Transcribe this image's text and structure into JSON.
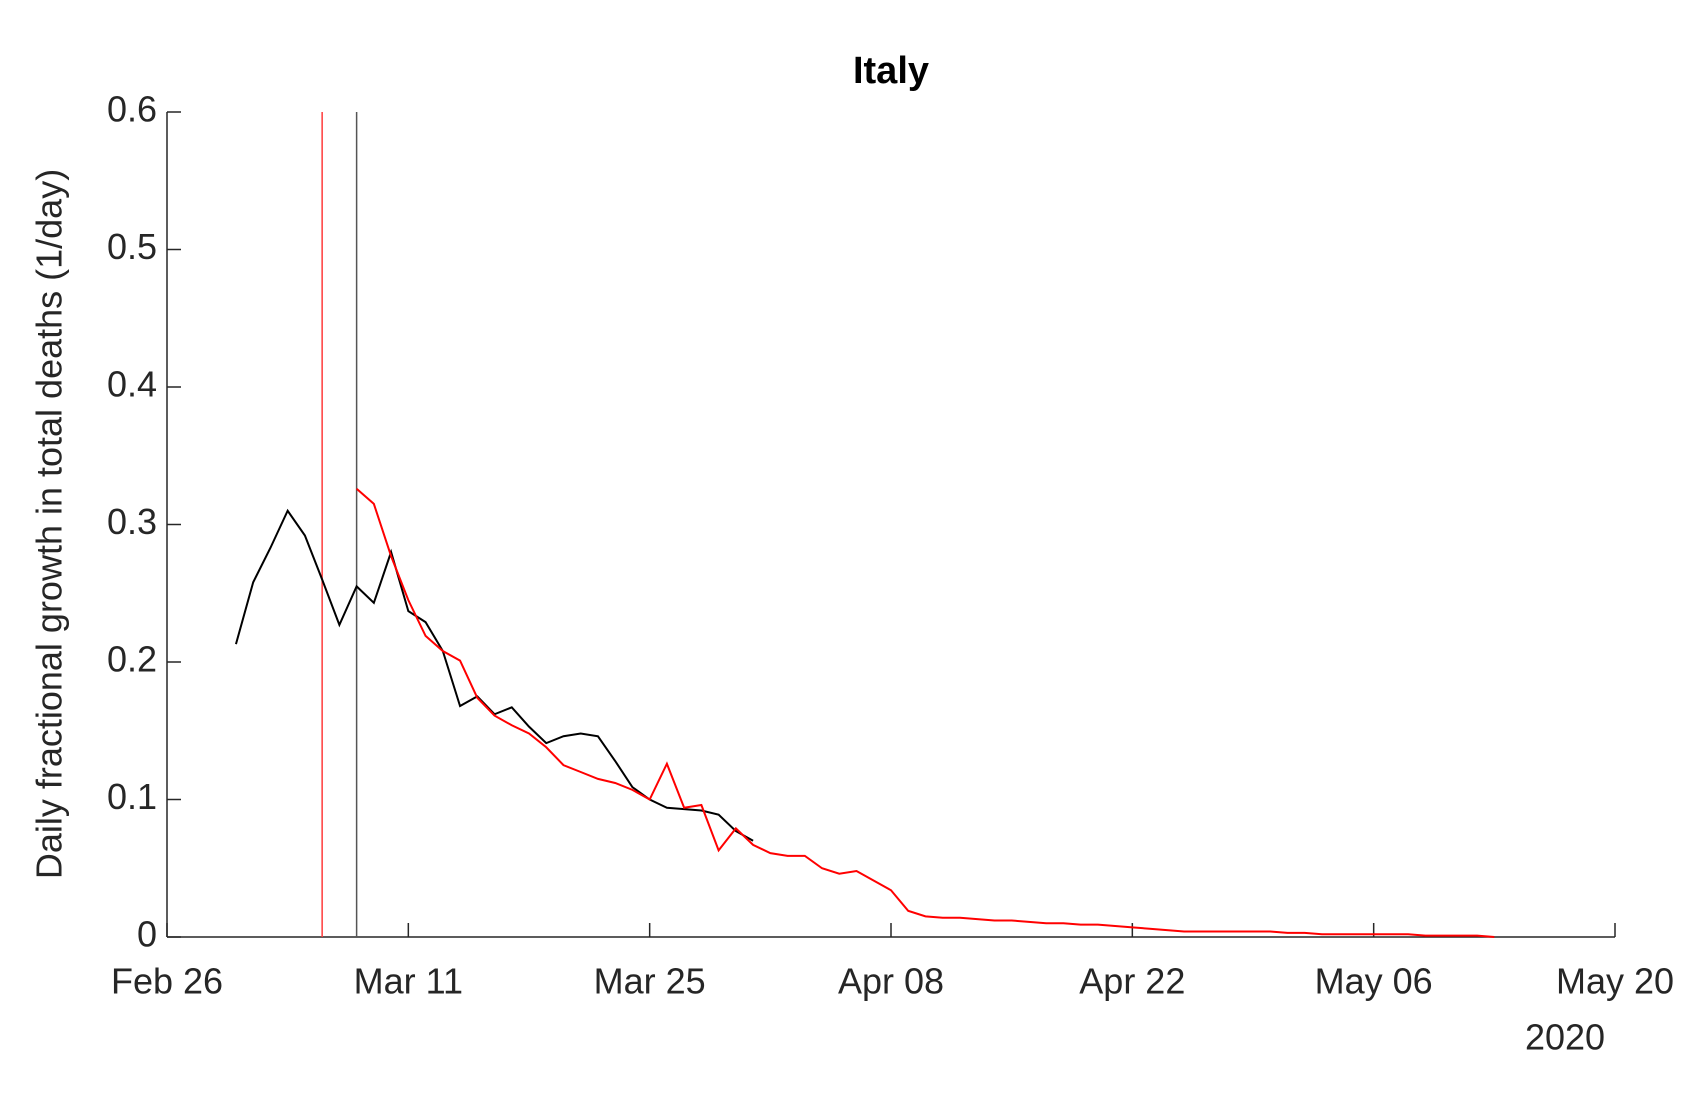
{
  "chart_data": {
    "type": "line",
    "title": "Italy",
    "y_label": "Daily fractional growth in total deaths (1/day)",
    "x_year_label": "2020",
    "xlim": [
      "2020-02-26",
      "2020-05-20"
    ],
    "xticks": [
      {
        "value": "2020-02-26",
        "label": "Feb 26"
      },
      {
        "value": "2020-03-11",
        "label": "Mar 11"
      },
      {
        "value": "2020-03-25",
        "label": "Mar 25"
      },
      {
        "value": "2020-04-08",
        "label": "Apr 08"
      },
      {
        "value": "2020-04-22",
        "label": "Apr 22"
      },
      {
        "value": "2020-05-06",
        "label": "May 06"
      },
      {
        "value": "2020-05-20",
        "label": "May 20"
      }
    ],
    "ylim": [
      0,
      0.6
    ],
    "yticks": [
      0,
      0.1,
      0.2,
      0.3,
      0.4,
      0.5,
      0.6
    ],
    "grid": false,
    "vlines": [
      {
        "x": "2020-03-06",
        "color": "#ff3b3b"
      },
      {
        "x": "2020-03-08",
        "color": "#555555"
      }
    ],
    "series": [
      {
        "color": "#000000",
        "x": [
          "2020-03-01",
          "2020-03-02",
          "2020-03-03",
          "2020-03-04",
          "2020-03-05",
          "2020-03-06",
          "2020-03-07",
          "2020-03-08",
          "2020-03-09",
          "2020-03-10",
          "2020-03-11",
          "2020-03-12",
          "2020-03-13",
          "2020-03-14",
          "2020-03-15",
          "2020-03-16",
          "2020-03-17",
          "2020-03-18",
          "2020-03-19",
          "2020-03-20",
          "2020-03-21",
          "2020-03-22",
          "2020-03-23",
          "2020-03-24",
          "2020-03-25",
          "2020-03-26",
          "2020-03-27",
          "2020-03-28",
          "2020-03-29",
          "2020-03-30",
          "2020-03-31"
        ],
        "values": [
          0.213,
          0.258,
          0.283,
          0.31,
          0.292,
          0.26,
          0.227,
          0.255,
          0.243,
          0.28,
          0.237,
          0.229,
          0.208,
          0.168,
          0.175,
          0.162,
          0.167,
          0.153,
          0.141,
          0.146,
          0.148,
          0.146,
          0.128,
          0.109,
          0.1,
          0.094,
          0.093,
          0.092,
          0.089,
          0.077,
          0.07
        ]
      },
      {
        "color": "#ff0000",
        "x": [
          "2020-03-08",
          "2020-03-09",
          "2020-03-10",
          "2020-03-11",
          "2020-03-12",
          "2020-03-13",
          "2020-03-14",
          "2020-03-15",
          "2020-03-16",
          "2020-03-17",
          "2020-03-18",
          "2020-03-19",
          "2020-03-20",
          "2020-03-21",
          "2020-03-22",
          "2020-03-23",
          "2020-03-24",
          "2020-03-25",
          "2020-03-26",
          "2020-03-27",
          "2020-03-28",
          "2020-03-29",
          "2020-03-30",
          "2020-03-31",
          "2020-04-01",
          "2020-04-02",
          "2020-04-03",
          "2020-04-04",
          "2020-04-05",
          "2020-04-06",
          "2020-04-07",
          "2020-04-08",
          "2020-04-09",
          "2020-04-10",
          "2020-04-11",
          "2020-04-12",
          "2020-04-13",
          "2020-04-14",
          "2020-04-15",
          "2020-04-16",
          "2020-04-17",
          "2020-04-18",
          "2020-04-19",
          "2020-04-20",
          "2020-04-21",
          "2020-04-22",
          "2020-04-23",
          "2020-04-24",
          "2020-04-25",
          "2020-04-26",
          "2020-04-27",
          "2020-04-28",
          "2020-04-29",
          "2020-04-30",
          "2020-05-01",
          "2020-05-02",
          "2020-05-03",
          "2020-05-04",
          "2020-05-05",
          "2020-05-06",
          "2020-05-07",
          "2020-05-08",
          "2020-05-09",
          "2020-05-10",
          "2020-05-11",
          "2020-05-12",
          "2020-05-13"
        ],
        "values": [
          0.326,
          0.315,
          0.277,
          0.245,
          0.219,
          0.208,
          0.201,
          0.174,
          0.161,
          0.154,
          0.148,
          0.138,
          0.125,
          0.12,
          0.115,
          0.112,
          0.107,
          0.1,
          0.126,
          0.094,
          0.096,
          0.063,
          0.079,
          0.067,
          0.061,
          0.059,
          0.059,
          0.05,
          0.046,
          0.048,
          0.041,
          0.034,
          0.019,
          0.015,
          0.014,
          0.014,
          0.013,
          0.012,
          0.012,
          0.011,
          0.01,
          0.01,
          0.009,
          0.009,
          0.008,
          0.007,
          0.006,
          0.005,
          0.004,
          0.004,
          0.004,
          0.004,
          0.004,
          0.004,
          0.003,
          0.003,
          0.002,
          0.002,
          0.002,
          0.002,
          0.002,
          0.002,
          0.001,
          0.001,
          0.001,
          0.001,
          0
        ]
      }
    ]
  }
}
